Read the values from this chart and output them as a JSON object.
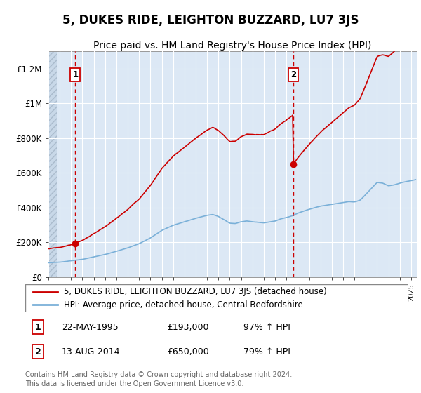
{
  "title": "5, DUKES RIDE, LEIGHTON BUZZARD, LU7 3JS",
  "subtitle": "Price paid vs. HM Land Registry's House Price Index (HPI)",
  "title_fontsize": 12,
  "subtitle_fontsize": 10,
  "background_color": "#ffffff",
  "plot_bg_color": "#dce8f5",
  "hatch_bg_color": "#c8d8e8",
  "grid_color": "#ffffff",
  "sale1_date": 1995.38,
  "sale1_price": 193000,
  "sale1_label": "1",
  "sale2_date": 2014.62,
  "sale2_price": 650000,
  "sale2_label": "2",
  "sale_color": "#cc0000",
  "hpi_color": "#7ab0d8",
  "dashed_line_color": "#cc0000",
  "legend_label1": "5, DUKES RIDE, LEIGHTON BUZZARD, LU7 3JS (detached house)",
  "legend_label2": "HPI: Average price, detached house, Central Bedfordshire",
  "footer": "Contains HM Land Registry data © Crown copyright and database right 2024.\nThis data is licensed under the Open Government Licence v3.0.",
  "xmin": 1993.0,
  "xmax": 2025.5,
  "ymin": 0,
  "ymax": 1300000,
  "yticks": [
    0,
    200000,
    400000,
    600000,
    800000,
    1000000,
    1200000
  ],
  "ytick_labels": [
    "£0",
    "£200K",
    "£400K",
    "£600K",
    "£800K",
    "£1M",
    "£1.2M"
  ],
  "hatch_xmax": 1993.75
}
